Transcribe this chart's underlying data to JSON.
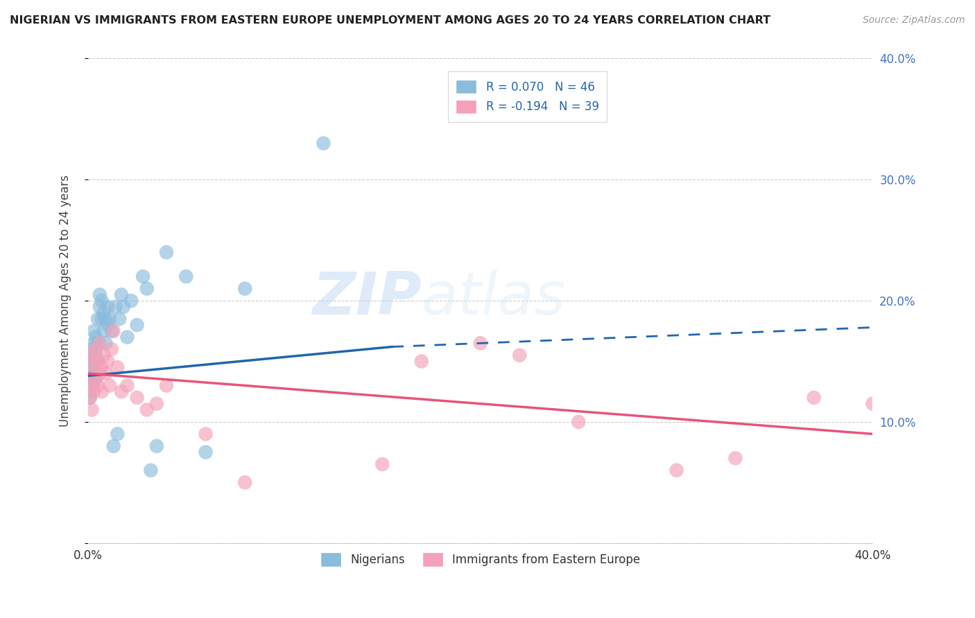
{
  "title": "NIGERIAN VS IMMIGRANTS FROM EASTERN EUROPE UNEMPLOYMENT AMONG AGES 20 TO 24 YEARS CORRELATION CHART",
  "source": "Source: ZipAtlas.com",
  "ylabel": "Unemployment Among Ages 20 to 24 years",
  "xlim": [
    0,
    0.4
  ],
  "ylim": [
    0,
    0.4
  ],
  "legend_label_blue": "R = 0.070   N = 46",
  "legend_label_pink": "R = -0.194   N = 39",
  "legend_label_bottom_blue": "Nigerians",
  "legend_label_bottom_pink": "Immigrants from Eastern Europe",
  "blue_color": "#8abcdc",
  "pink_color": "#f4a0b8",
  "trend_blue_color": "#2166ac",
  "trend_pink_color": "#e8537a",
  "watermark_zip": "ZIP",
  "watermark_atlas": "atlas",
  "background_color": "#ffffff",
  "grid_color": "#cccccc",
  "nigerians_x": [
    0.001,
    0.001,
    0.001,
    0.002,
    0.002,
    0.002,
    0.003,
    0.003,
    0.003,
    0.003,
    0.004,
    0.004,
    0.004,
    0.005,
    0.005,
    0.005,
    0.006,
    0.006,
    0.007,
    0.007,
    0.008,
    0.008,
    0.009,
    0.009,
    0.01,
    0.01,
    0.011,
    0.012,
    0.013,
    0.014,
    0.015,
    0.016,
    0.017,
    0.018,
    0.02,
    0.022,
    0.025,
    0.028,
    0.03,
    0.032,
    0.035,
    0.04,
    0.05,
    0.06,
    0.08,
    0.12
  ],
  "nigerians_y": [
    0.12,
    0.14,
    0.155,
    0.13,
    0.145,
    0.16,
    0.135,
    0.15,
    0.165,
    0.175,
    0.14,
    0.155,
    0.17,
    0.15,
    0.165,
    0.185,
    0.195,
    0.205,
    0.185,
    0.2,
    0.19,
    0.175,
    0.185,
    0.165,
    0.195,
    0.18,
    0.185,
    0.175,
    0.08,
    0.195,
    0.09,
    0.185,
    0.205,
    0.195,
    0.17,
    0.2,
    0.18,
    0.22,
    0.21,
    0.06,
    0.08,
    0.24,
    0.22,
    0.075,
    0.21,
    0.33
  ],
  "eastern_europe_x": [
    0.001,
    0.001,
    0.001,
    0.002,
    0.002,
    0.003,
    0.003,
    0.004,
    0.004,
    0.005,
    0.005,
    0.006,
    0.006,
    0.007,
    0.007,
    0.008,
    0.009,
    0.01,
    0.011,
    0.012,
    0.013,
    0.015,
    0.017,
    0.02,
    0.025,
    0.03,
    0.035,
    0.04,
    0.06,
    0.08,
    0.15,
    0.17,
    0.2,
    0.22,
    0.25,
    0.3,
    0.33,
    0.37,
    0.4
  ],
  "eastern_europe_y": [
    0.12,
    0.13,
    0.155,
    0.11,
    0.14,
    0.125,
    0.15,
    0.135,
    0.16,
    0.13,
    0.15,
    0.14,
    0.165,
    0.125,
    0.145,
    0.155,
    0.14,
    0.15,
    0.13,
    0.16,
    0.175,
    0.145,
    0.125,
    0.13,
    0.12,
    0.11,
    0.115,
    0.13,
    0.09,
    0.05,
    0.065,
    0.15,
    0.165,
    0.155,
    0.1,
    0.06,
    0.07,
    0.12,
    0.115
  ],
  "blue_line_x0": 0.0,
  "blue_line_y0": 0.138,
  "blue_line_x_solid_end": 0.155,
  "blue_line_y_solid_end": 0.162,
  "blue_line_x1": 0.4,
  "blue_line_y1": 0.178,
  "pink_line_x0": 0.0,
  "pink_line_y0": 0.14,
  "pink_line_x1": 0.4,
  "pink_line_y1": 0.09
}
